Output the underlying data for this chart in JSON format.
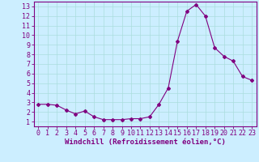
{
  "x": [
    0,
    1,
    2,
    3,
    4,
    5,
    6,
    7,
    8,
    9,
    10,
    11,
    12,
    13,
    14,
    15,
    16,
    17,
    18,
    19,
    20,
    21,
    22,
    23
  ],
  "y": [
    2.8,
    2.8,
    2.7,
    2.2,
    1.8,
    2.1,
    1.5,
    1.2,
    1.2,
    1.2,
    1.3,
    1.3,
    1.5,
    2.8,
    4.5,
    9.4,
    12.5,
    13.2,
    12.0,
    8.7,
    7.8,
    7.3,
    5.7,
    5.3
  ],
  "line_color": "#800080",
  "marker": "D",
  "marker_size": 2,
  "bg_color": "#cceeff",
  "plot_bg_color": "#cceeff",
  "grid_color": "#aadddd",
  "xlabel": "Windchill (Refroidissement éolien,°C)",
  "xlabel_color": "#800080",
  "ylabel_ticks": [
    1,
    2,
    3,
    4,
    5,
    6,
    7,
    8,
    9,
    10,
    11,
    12,
    13
  ],
  "xlim": [
    -0.5,
    23.5
  ],
  "ylim": [
    0.5,
    13.5
  ],
  "tick_color": "#800080",
  "axis_color": "#800080",
  "font_size": 6,
  "xlabel_fontsize": 6.5
}
